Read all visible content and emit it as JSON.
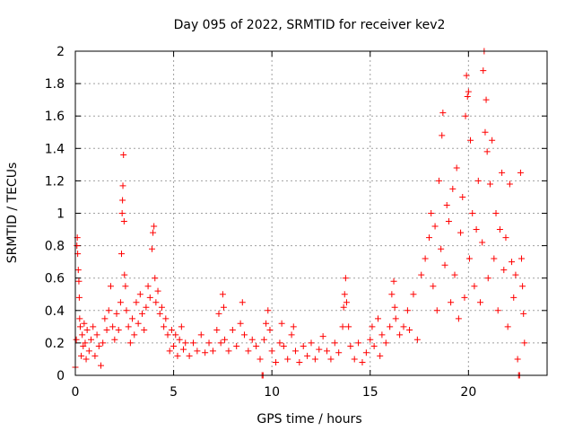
{
  "chart_data": {
    "type": "scatter",
    "title": "Day 095 of 2022, SRMTID for receiver kev2",
    "xlabel": "GPS time / hours",
    "ylabel": "SRMTID / TECUs",
    "xlim": [
      0,
      24
    ],
    "ylim": [
      0,
      2
    ],
    "xticks": [
      0,
      5,
      10,
      15,
      20
    ],
    "yticks": [
      0,
      0.2,
      0.4,
      0.6,
      0.8,
      1,
      1.2,
      1.4,
      1.6,
      1.8,
      2
    ],
    "grid": true,
    "marker": "+",
    "color": "#ff0000",
    "series": [
      {
        "name": "SRMTID",
        "points": [
          [
            0.0,
            0.05
          ],
          [
            0.05,
            0.22
          ],
          [
            0.08,
            0.8
          ],
          [
            0.1,
            0.85
          ],
          [
            0.12,
            0.75
          ],
          [
            0.15,
            0.65
          ],
          [
            0.18,
            0.58
          ],
          [
            0.2,
            0.48
          ],
          [
            0.22,
            0.35
          ],
          [
            0.25,
            0.3
          ],
          [
            0.3,
            0.12
          ],
          [
            0.35,
            0.25
          ],
          [
            0.4,
            0.18
          ],
          [
            0.45,
            0.32
          ],
          [
            0.5,
            0.2
          ],
          [
            0.55,
            0.1
          ],
          [
            0.6,
            0.28
          ],
          [
            0.7,
            0.15
          ],
          [
            0.8,
            0.22
          ],
          [
            0.9,
            0.3
          ],
          [
            1.0,
            0.12
          ],
          [
            1.1,
            0.25
          ],
          [
            1.2,
            0.18
          ],
          [
            1.3,
            0.06
          ],
          [
            1.4,
            0.2
          ],
          [
            1.5,
            0.35
          ],
          [
            1.6,
            0.28
          ],
          [
            1.7,
            0.4
          ],
          [
            1.8,
            0.55
          ],
          [
            1.9,
            0.3
          ],
          [
            2.0,
            0.22
          ],
          [
            2.1,
            0.38
          ],
          [
            2.2,
            0.28
          ],
          [
            2.3,
            0.45
          ],
          [
            2.35,
            0.75
          ],
          [
            2.38,
            1.0
          ],
          [
            2.4,
            1.08
          ],
          [
            2.42,
            1.17
          ],
          [
            2.45,
            1.36
          ],
          [
            2.48,
            0.95
          ],
          [
            2.5,
            0.62
          ],
          [
            2.55,
            0.55
          ],
          [
            2.6,
            0.4
          ],
          [
            2.7,
            0.3
          ],
          [
            2.8,
            0.2
          ],
          [
            2.9,
            0.35
          ],
          [
            3.0,
            0.25
          ],
          [
            3.1,
            0.45
          ],
          [
            3.2,
            0.32
          ],
          [
            3.3,
            0.5
          ],
          [
            3.4,
            0.38
          ],
          [
            3.5,
            0.28
          ],
          [
            3.6,
            0.42
          ],
          [
            3.7,
            0.55
          ],
          [
            3.8,
            0.48
          ],
          [
            3.9,
            0.78
          ],
          [
            3.95,
            0.88
          ],
          [
            4.0,
            0.92
          ],
          [
            4.05,
            0.6
          ],
          [
            4.1,
            0.45
          ],
          [
            4.2,
            0.52
          ],
          [
            4.3,
            0.38
          ],
          [
            4.4,
            0.42
          ],
          [
            4.5,
            0.3
          ],
          [
            4.6,
            0.35
          ],
          [
            4.7,
            0.25
          ],
          [
            4.8,
            0.15
          ],
          [
            4.9,
            0.28
          ],
          [
            5.0,
            0.18
          ],
          [
            5.1,
            0.25
          ],
          [
            5.2,
            0.12
          ],
          [
            5.3,
            0.22
          ],
          [
            5.4,
            0.3
          ],
          [
            5.5,
            0.16
          ],
          [
            5.6,
            0.2
          ],
          [
            5.8,
            0.12
          ],
          [
            6.0,
            0.2
          ],
          [
            6.2,
            0.15
          ],
          [
            6.4,
            0.25
          ],
          [
            6.6,
            0.14
          ],
          [
            6.8,
            0.2
          ],
          [
            7.0,
            0.15
          ],
          [
            7.2,
            0.28
          ],
          [
            7.3,
            0.38
          ],
          [
            7.4,
            0.2
          ],
          [
            7.5,
            0.5
          ],
          [
            7.55,
            0.42
          ],
          [
            7.6,
            0.22
          ],
          [
            7.8,
            0.15
          ],
          [
            8.0,
            0.28
          ],
          [
            8.2,
            0.18
          ],
          [
            8.4,
            0.32
          ],
          [
            8.5,
            0.45
          ],
          [
            8.6,
            0.25
          ],
          [
            8.8,
            0.15
          ],
          [
            9.0,
            0.22
          ],
          [
            9.2,
            0.18
          ],
          [
            9.4,
            0.1
          ],
          [
            9.5,
            0.0
          ],
          [
            9.55,
            0.0
          ],
          [
            9.6,
            0.22
          ],
          [
            9.7,
            0.32
          ],
          [
            9.8,
            0.4
          ],
          [
            9.9,
            0.28
          ],
          [
            10.0,
            0.15
          ],
          [
            10.2,
            0.08
          ],
          [
            10.4,
            0.2
          ],
          [
            10.5,
            0.32
          ],
          [
            10.6,
            0.18
          ],
          [
            10.8,
            0.1
          ],
          [
            11.0,
            0.25
          ],
          [
            11.1,
            0.3
          ],
          [
            11.2,
            0.15
          ],
          [
            11.4,
            0.08
          ],
          [
            11.6,
            0.18
          ],
          [
            11.8,
            0.12
          ],
          [
            12.0,
            0.2
          ],
          [
            12.2,
            0.1
          ],
          [
            12.4,
            0.16
          ],
          [
            12.6,
            0.24
          ],
          [
            12.8,
            0.15
          ],
          [
            13.0,
            0.1
          ],
          [
            13.2,
            0.2
          ],
          [
            13.4,
            0.14
          ],
          [
            13.6,
            0.3
          ],
          [
            13.65,
            0.42
          ],
          [
            13.7,
            0.5
          ],
          [
            13.75,
            0.6
          ],
          [
            13.8,
            0.45
          ],
          [
            13.9,
            0.3
          ],
          [
            14.0,
            0.18
          ],
          [
            14.2,
            0.1
          ],
          [
            14.4,
            0.2
          ],
          [
            14.6,
            0.08
          ],
          [
            14.8,
            0.14
          ],
          [
            15.0,
            0.22
          ],
          [
            15.1,
            0.3
          ],
          [
            15.2,
            0.18
          ],
          [
            15.4,
            0.35
          ],
          [
            15.5,
            0.12
          ],
          [
            15.6,
            0.25
          ],
          [
            15.8,
            0.2
          ],
          [
            16.0,
            0.3
          ],
          [
            16.1,
            0.5
          ],
          [
            16.2,
            0.58
          ],
          [
            16.25,
            0.42
          ],
          [
            16.3,
            0.35
          ],
          [
            16.5,
            0.25
          ],
          [
            16.7,
            0.3
          ],
          [
            16.9,
            0.4
          ],
          [
            17.0,
            0.28
          ],
          [
            17.2,
            0.5
          ],
          [
            17.4,
            0.22
          ],
          [
            17.6,
            0.62
          ],
          [
            17.8,
            0.72
          ],
          [
            18.0,
            0.85
          ],
          [
            18.1,
            1.0
          ],
          [
            18.2,
            0.55
          ],
          [
            18.3,
            0.92
          ],
          [
            18.4,
            0.4
          ],
          [
            18.5,
            1.2
          ],
          [
            18.6,
            0.78
          ],
          [
            18.65,
            1.48
          ],
          [
            18.7,
            1.62
          ],
          [
            18.8,
            0.68
          ],
          [
            18.9,
            1.05
          ],
          [
            19.0,
            0.95
          ],
          [
            19.1,
            0.45
          ],
          [
            19.2,
            1.15
          ],
          [
            19.3,
            0.62
          ],
          [
            19.4,
            1.28
          ],
          [
            19.5,
            0.35
          ],
          [
            19.6,
            0.88
          ],
          [
            19.7,
            1.1
          ],
          [
            19.8,
            0.48
          ],
          [
            19.85,
            1.6
          ],
          [
            19.9,
            1.85
          ],
          [
            19.95,
            1.72
          ],
          [
            20.0,
            1.75
          ],
          [
            20.05,
            0.72
          ],
          [
            20.1,
            1.45
          ],
          [
            20.2,
            1.0
          ],
          [
            20.3,
            0.55
          ],
          [
            20.4,
            0.9
          ],
          [
            20.5,
            1.2
          ],
          [
            20.6,
            0.45
          ],
          [
            20.7,
            0.82
          ],
          [
            20.75,
            1.88
          ],
          [
            20.8,
            2.0
          ],
          [
            20.85,
            1.5
          ],
          [
            20.9,
            1.7
          ],
          [
            20.95,
            1.38
          ],
          [
            21.0,
            0.6
          ],
          [
            21.1,
            1.18
          ],
          [
            21.2,
            1.45
          ],
          [
            21.3,
            0.72
          ],
          [
            21.4,
            1.0
          ],
          [
            21.5,
            0.4
          ],
          [
            21.6,
            0.9
          ],
          [
            21.7,
            1.25
          ],
          [
            21.8,
            0.65
          ],
          [
            21.9,
            0.85
          ],
          [
            22.0,
            0.3
          ],
          [
            22.1,
            1.18
          ],
          [
            22.2,
            0.7
          ],
          [
            22.3,
            0.48
          ],
          [
            22.4,
            0.62
          ],
          [
            22.5,
            0.1
          ],
          [
            22.55,
            0.0
          ],
          [
            22.6,
            0.0
          ],
          [
            22.65,
            1.25
          ],
          [
            22.7,
            0.72
          ],
          [
            22.75,
            0.55
          ],
          [
            22.8,
            0.38
          ],
          [
            22.85,
            0.2
          ]
        ]
      }
    ]
  }
}
